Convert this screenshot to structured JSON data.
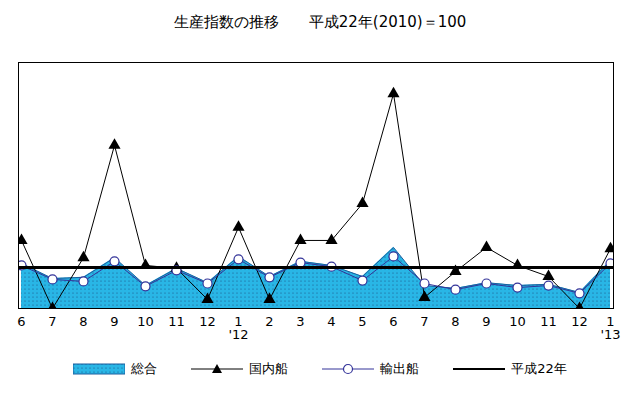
{
  "chart_data": {
    "type": "line",
    "title": "生産指数の推移　　平成22年(2010)＝100",
    "categories": [
      "6",
      "7",
      "8",
      "9",
      "10",
      "11",
      "12",
      "1\n'12",
      "2",
      "3",
      "4",
      "5",
      "6",
      "7",
      "8",
      "9",
      "10",
      "11",
      "12",
      "1\n'13"
    ],
    "ylim": [
      0,
      600
    ],
    "tick_labels": "x",
    "grid": false,
    "legend": "bottom",
    "series": [
      {
        "name": "総合",
        "type": "area",
        "color": "#29b6e6",
        "values": [
          110,
          73,
          76,
          124,
          56,
          98,
          63,
          127,
          78,
          115,
          105,
          78,
          149,
          56,
          49,
          63,
          56,
          59,
          39,
          117
        ]
      },
      {
        "name": "国内船",
        "type": "line",
        "color": "#000000",
        "marker": "triangle",
        "line_style": "solid",
        "values": [
          166,
          0,
          124,
          398,
          105,
          98,
          22,
          198,
          22,
          166,
          166,
          256,
          524,
          27,
          90,
          149,
          105,
          78,
          0,
          146
        ]
      },
      {
        "name": "輸出船",
        "type": "line",
        "color": "#333399",
        "marker": "circle",
        "line_style": "solid",
        "values": [
          105,
          71,
          66,
          115,
          54,
          93,
          61,
          120,
          76,
          112,
          102,
          68,
          127,
          61,
          46,
          61,
          51,
          56,
          37,
          110
        ]
      },
      {
        "name": "平成22年",
        "type": "rule",
        "color": "#000000",
        "line_style": "solid",
        "values": [
          100,
          100,
          100,
          100,
          100,
          100,
          100,
          100,
          100,
          100,
          100,
          100,
          100,
          100,
          100,
          100,
          100,
          100,
          100,
          100
        ]
      }
    ]
  }
}
